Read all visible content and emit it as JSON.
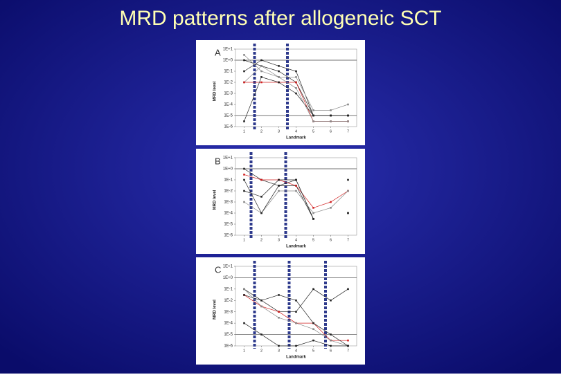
{
  "title": "MRD patterns after allogeneic SCT",
  "chart_data": [
    {
      "type": "line",
      "panel": "A",
      "xlabel": "Landmark",
      "ylabel": "MRD level",
      "log_y": true,
      "xlim": [
        0.5,
        7.5
      ],
      "ylim": [
        1e-06,
        10
      ],
      "xticks": [
        1,
        2,
        3,
        4,
        5,
        6,
        7
      ],
      "yticks": [
        {
          "value": 10,
          "label": "1E+1"
        },
        {
          "value": 1,
          "label": "1E+0"
        },
        {
          "value": 0.1,
          "label": "1E-1"
        },
        {
          "value": 0.01,
          "label": "1E-2"
        },
        {
          "value": 0.001,
          "label": "1E-3"
        },
        {
          "value": 0.0001,
          "label": "1E-4"
        },
        {
          "value": 1e-05,
          "label": "1E-5"
        },
        {
          "value": 1e-06,
          "label": "1E-6"
        }
      ],
      "hlines": [
        1,
        1e-05
      ],
      "vlines": [
        1.6,
        3.5
      ],
      "vline_color": "#2e3a8c",
      "x": [
        1,
        2,
        3,
        4,
        5,
        6,
        7
      ],
      "series": [
        {
          "color": "#222222",
          "values": [
            1,
            0.3,
            0.1,
            0.01,
            1e-05,
            1e-05,
            1e-05
          ]
        },
        {
          "color": "#222222",
          "values": [
            0.1,
            1,
            0.3,
            0.1,
            1e-05,
            1e-05,
            1e-05
          ]
        },
        {
          "color": "#888888",
          "values": [
            0.01,
            0.3,
            0.03,
            0.03,
            3e-05,
            3e-05,
            0.0001
          ]
        },
        {
          "color": "#d02020",
          "values": [
            0.01,
            0.01,
            0.01,
            0.01,
            3e-06,
            3e-06,
            3e-06
          ]
        },
        {
          "color": "#222222",
          "values": [
            3e-06,
            0.03,
            0.01,
            0.001,
            1e-05,
            1e-05,
            1e-05
          ]
        },
        {
          "color": "#888888",
          "values": [
            3,
            0.1,
            0.03,
            0.003,
            3e-06,
            3e-06,
            3e-06
          ]
        }
      ]
    },
    {
      "type": "line",
      "panel": "B",
      "xlabel": "Landmark",
      "ylabel": "MRD level",
      "log_y": true,
      "xlim": [
        0.5,
        7.5
      ],
      "ylim": [
        1e-06,
        10
      ],
      "xticks": [
        1,
        2,
        3,
        4,
        5,
        6,
        7
      ],
      "yticks": [
        {
          "value": 10,
          "label": "1E+1"
        },
        {
          "value": 1,
          "label": "1E+0"
        },
        {
          "value": 0.1,
          "label": "1E-1"
        },
        {
          "value": 0.01,
          "label": "1E-2"
        },
        {
          "value": 0.001,
          "label": "1E-3"
        },
        {
          "value": 0.0001,
          "label": "1E-4"
        },
        {
          "value": 1e-05,
          "label": "1E-5"
        },
        {
          "value": 1e-06,
          "label": "1E-6"
        }
      ],
      "hlines": [
        1
      ],
      "vlines": [
        1.4,
        3.4
      ],
      "vline_color": "#2e3a8c",
      "x": [
        1,
        2,
        3,
        4,
        5,
        6,
        7
      ],
      "series": [
        {
          "color": "#222222",
          "values": [
            1,
            0.1,
            0.03,
            0.03,
            3e-05,
            null,
            0.0001
          ]
        },
        {
          "color": "#d02020",
          "values": [
            0.3,
            0.1,
            0.1,
            0.03,
            0.0003,
            0.001,
            0.01
          ]
        },
        {
          "color": "#222222",
          "values": [
            0.01,
            0.003,
            0.1,
            0.1,
            3e-05,
            null,
            0.1
          ]
        },
        {
          "color": "#888888",
          "values": [
            0.001,
            0.0001,
            0.01,
            0.01,
            0.0001,
            0.0003,
            0.01
          ]
        },
        {
          "color": "#222222",
          "values": [
            0.1,
            0.0001,
            0.03,
            0.1,
            3e-05,
            null,
            0.0001
          ]
        }
      ]
    },
    {
      "type": "line",
      "panel": "C",
      "xlabel": "Landmark",
      "ylabel": "MRD level",
      "log_y": true,
      "xlim": [
        0.5,
        7.5
      ],
      "ylim": [
        1e-06,
        10
      ],
      "xticks": [
        1,
        2,
        3,
        4,
        5,
        6,
        7
      ],
      "yticks": [
        {
          "value": 10,
          "label": "1E+1"
        },
        {
          "value": 1,
          "label": "1E+0"
        },
        {
          "value": 0.1,
          "label": "1E-1"
        },
        {
          "value": 0.01,
          "label": "1E-2"
        },
        {
          "value": 0.001,
          "label": "1E-3"
        },
        {
          "value": 0.0001,
          "label": "1E-4"
        },
        {
          "value": 1e-05,
          "label": "1E-5"
        },
        {
          "value": 1e-06,
          "label": "1E-6"
        }
      ],
      "hlines": [
        1,
        1e-05
      ],
      "vlines": [
        1.6,
        3.6,
        5.7
      ],
      "vline_color": "#2e3a8c",
      "x": [
        1,
        2,
        3,
        4,
        5,
        6,
        7
      ],
      "series": [
        {
          "color": "#222222",
          "values": [
            0.1,
            0.01,
            0.001,
            0.001,
            0.1,
            0.01,
            0.1
          ]
        },
        {
          "color": "#d02020",
          "values": [
            0.03,
            0.003,
            0.001,
            0.0001,
            0.0001,
            3e-06,
            3e-06
          ]
        },
        {
          "color": "#888888",
          "values": [
            0.1,
            0.003,
            0.0003,
            0.0001,
            3e-05,
            3e-06,
            1e-06
          ]
        },
        {
          "color": "#222222",
          "values": [
            0.0001,
            1e-05,
            1e-06,
            1e-06,
            3e-06,
            1e-06,
            1e-06
          ]
        },
        {
          "color": "#222222",
          "values": [
            0.03,
            0.01,
            0.03,
            0.01,
            0.0001,
            1e-05,
            1e-06
          ]
        }
      ]
    }
  ]
}
